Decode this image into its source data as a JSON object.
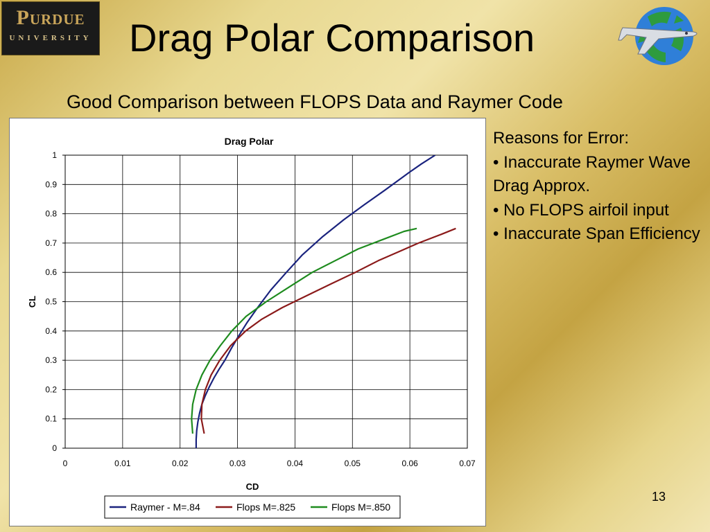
{
  "slide": {
    "logo_line1": "Purdue",
    "logo_line2": "UNIVERSITY",
    "title": "Drag Polar Comparison",
    "subtitle": "Good Comparison between FLOPS Data and Raymer Code",
    "reasons_header": "Reasons for Error:",
    "reasons": [
      "•  Inaccurate Raymer Wave Drag Approx.",
      "•  No FLOPS airfoil input",
      "•  Inaccurate Span Efficiency"
    ],
    "page_number": "13",
    "emblem_icon": "recycle-airplane-icon"
  },
  "chart_data": {
    "type": "line",
    "title": "Drag Polar",
    "xlabel": "CD",
    "ylabel": "CL",
    "xlim": [
      0,
      0.07
    ],
    "ylim": [
      0,
      1
    ],
    "x_ticks": [
      "0",
      "0.01",
      "0.02",
      "0.03",
      "0.04",
      "0.05",
      "0.06",
      "0.07"
    ],
    "y_ticks": [
      "0",
      "0.1",
      "0.2",
      "0.3",
      "0.4",
      "0.5",
      "0.6",
      "0.7",
      "0.8",
      "0.9",
      "1"
    ],
    "grid": "vertical and horizontal major gridlines",
    "legend_position": "bottom",
    "series": [
      {
        "name": "Raymer - M=.84",
        "color": "#1a237e",
        "points": [
          [
            0.0228,
            0
          ],
          [
            0.0228,
            0.03
          ],
          [
            0.0229,
            0.06
          ],
          [
            0.0231,
            0.09
          ],
          [
            0.0234,
            0.12
          ],
          [
            0.0238,
            0.15
          ],
          [
            0.0244,
            0.18
          ],
          [
            0.0251,
            0.21
          ],
          [
            0.0259,
            0.24
          ],
          [
            0.0268,
            0.27
          ],
          [
            0.0278,
            0.3
          ],
          [
            0.0289,
            0.34
          ],
          [
            0.0301,
            0.38
          ],
          [
            0.0317,
            0.43
          ],
          [
            0.0335,
            0.48
          ],
          [
            0.0358,
            0.54
          ],
          [
            0.0385,
            0.6
          ],
          [
            0.0413,
            0.66
          ],
          [
            0.0447,
            0.72
          ],
          [
            0.0485,
            0.78
          ],
          [
            0.052,
            0.83
          ],
          [
            0.0556,
            0.88
          ],
          [
            0.0598,
            0.94
          ],
          [
            0.062,
            0.97
          ],
          [
            0.0644,
            1.0
          ]
        ]
      },
      {
        "name": "Flops M=.825",
        "color": "#8b1a1a",
        "points": [
          [
            0.0242,
            0.05
          ],
          [
            0.0237,
            0.1
          ],
          [
            0.0238,
            0.15
          ],
          [
            0.0244,
            0.2
          ],
          [
            0.0254,
            0.25
          ],
          [
            0.0269,
            0.3
          ],
          [
            0.0288,
            0.35
          ],
          [
            0.0314,
            0.4
          ],
          [
            0.0342,
            0.44
          ],
          [
            0.0378,
            0.48
          ],
          [
            0.042,
            0.52
          ],
          [
            0.0462,
            0.56
          ],
          [
            0.0505,
            0.6
          ],
          [
            0.0545,
            0.64
          ],
          [
            0.058,
            0.67
          ],
          [
            0.0615,
            0.7
          ],
          [
            0.0655,
            0.73
          ],
          [
            0.068,
            0.75
          ]
        ]
      },
      {
        "name": "Flops M=.850",
        "color": "#1e8b1e",
        "points": [
          [
            0.0222,
            0.05
          ],
          [
            0.022,
            0.1
          ],
          [
            0.0222,
            0.15
          ],
          [
            0.0228,
            0.2
          ],
          [
            0.0238,
            0.25
          ],
          [
            0.0252,
            0.3
          ],
          [
            0.027,
            0.35
          ],
          [
            0.029,
            0.4
          ],
          [
            0.0315,
            0.45
          ],
          [
            0.035,
            0.5
          ],
          [
            0.039,
            0.55
          ],
          [
            0.043,
            0.6
          ],
          [
            0.047,
            0.64
          ],
          [
            0.051,
            0.68
          ],
          [
            0.055,
            0.71
          ],
          [
            0.059,
            0.74
          ],
          [
            0.0612,
            0.75
          ]
        ]
      }
    ]
  }
}
